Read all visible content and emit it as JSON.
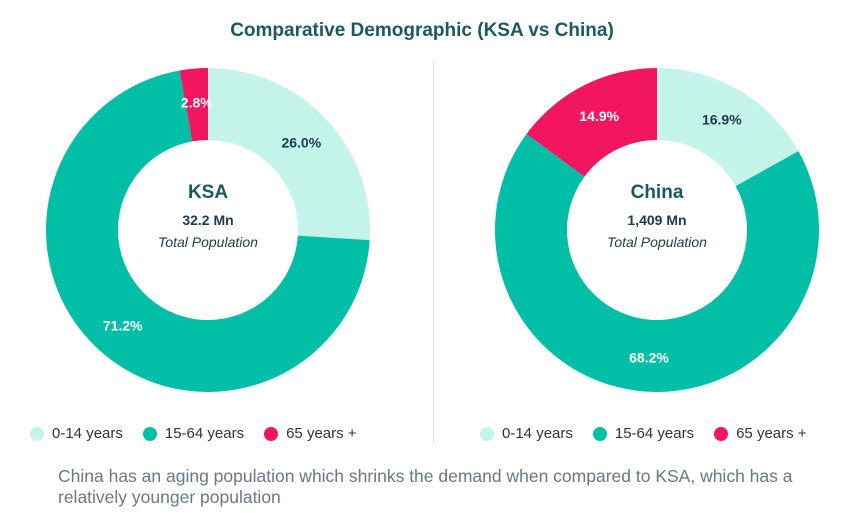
{
  "colors": {
    "c0_14": "#c4f3e9",
    "c15_64": "#00bfa6",
    "c65": "#f2155f",
    "title": "#1b5a5c",
    "center": "#1e3a4a"
  },
  "chart_data": [
    {
      "type": "pie",
      "title": "Comparative Demographic (KSA vs China)",
      "name": "KSA",
      "total": "32.2 Mn",
      "total_label": "Total Population",
      "categories": [
        "0-14 years",
        "15-64 years",
        "65 years +"
      ],
      "values": [
        26.0,
        71.2,
        2.8
      ],
      "labels": [
        "26.0%",
        "71.2%",
        "2.8%"
      ]
    },
    {
      "type": "pie",
      "title": "Comparative Demographic (KSA vs China)",
      "name": "China",
      "total": "1,409 Mn",
      "total_label": "Total Population",
      "categories": [
        "0-14 years",
        "15-64 years",
        "65 years +"
      ],
      "values": [
        16.9,
        68.2,
        14.9
      ],
      "labels": [
        "16.9%",
        "68.2%",
        "14.9%"
      ]
    }
  ],
  "title": "Comparative Demographic (KSA vs China)",
  "note": "China has an aging population which shrinks the demand when compared to KSA, which has a relatively younger population"
}
